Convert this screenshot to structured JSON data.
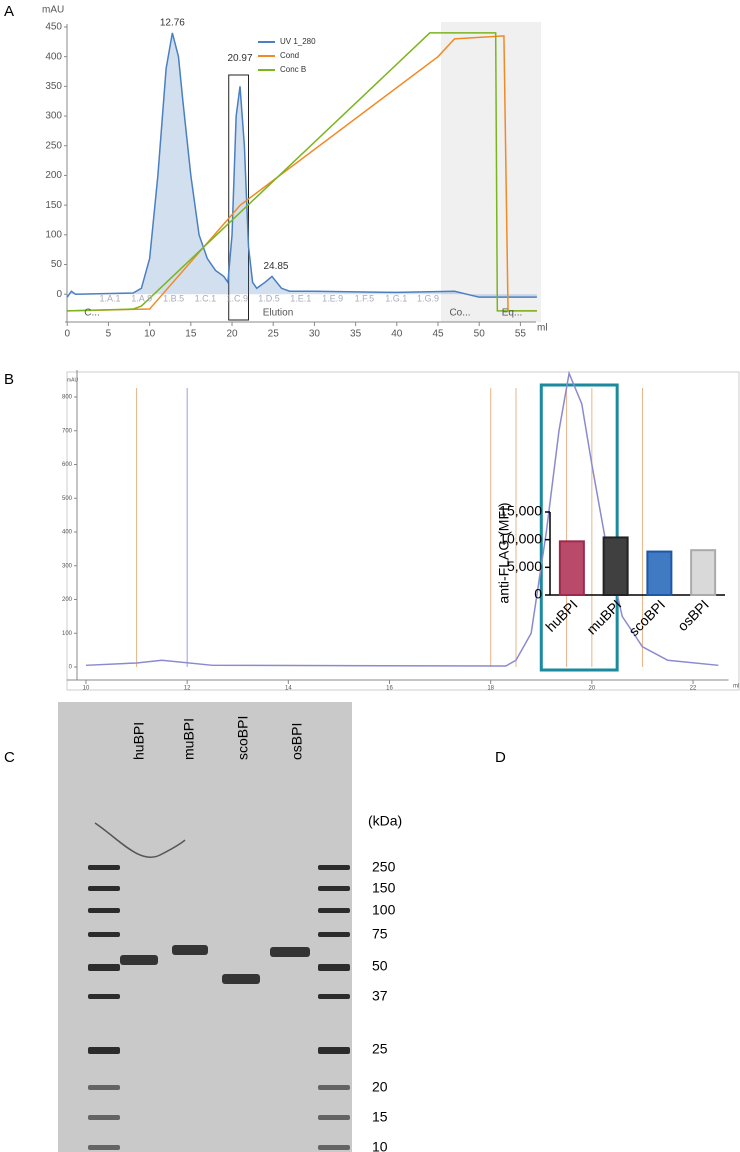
{
  "chart_data": [
    {
      "type": "line",
      "label": "A",
      "ylabel": "mAU",
      "xlabel": "ml",
      "xlim": [
        -1,
        57.5
      ],
      "xticks": [
        0,
        5,
        10,
        15,
        20,
        25,
        30,
        35,
        40,
        45,
        50,
        55
      ],
      "ylim": [
        -35,
        455
      ],
      "yticks": [
        0,
        50,
        100,
        150,
        200,
        250,
        300,
        350,
        400,
        450
      ],
      "series": [
        {
          "name": "UV 1_280",
          "color": "#4a7fc1",
          "area": true,
          "x": [
            0,
            0.5,
            1,
            8,
            9,
            10,
            11,
            12,
            12.76,
            13.5,
            14,
            15,
            16,
            17,
            18,
            19,
            19.5,
            20,
            20.5,
            20.97,
            21.5,
            22,
            22.5,
            23,
            24,
            24.85,
            26,
            27,
            30,
            40,
            47,
            50,
            57
          ],
          "values": [
            -5,
            5,
            0,
            2,
            10,
            60,
            200,
            380,
            440,
            400,
            330,
            200,
            100,
            60,
            40,
            30,
            20,
            100,
            300,
            350,
            250,
            80,
            20,
            10,
            20,
            30,
            10,
            5,
            5,
            3,
            5,
            -5,
            -5
          ]
        },
        {
          "name": "Cond",
          "color": "#f08a24",
          "x": [
            0,
            10,
            21,
            45,
            47,
            53,
            53.5,
            57
          ],
          "values": [
            -28,
            -25,
            150,
            400,
            430,
            435,
            -28,
            -28
          ]
        },
        {
          "name": "Conc B",
          "color": "#7ab51d",
          "x": [
            0,
            8,
            9,
            44,
            52,
            52.2,
            57
          ],
          "values": [
            -28,
            -25,
            -20,
            440,
            440,
            -28,
            -28
          ]
        }
      ],
      "annotations": [
        "12.76",
        "20.97",
        "24.85"
      ],
      "annotation_x": [
        12.76,
        20.97,
        24.85
      ],
      "annotation_y": [
        440,
        380,
        30
      ],
      "fractions": [
        "1.A.1",
        "1.A.9",
        "1.B.5",
        "1.C.1",
        "1.C.9",
        "1.D.5",
        "1.E.1",
        "1.E.9",
        "1.F.5",
        "1.G.1",
        "1.G.9"
      ],
      "phases": [
        "C...",
        "Elution",
        "Co...",
        "Eq..."
      ]
    },
    {
      "type": "line",
      "label": "B",
      "ylabel": "mAU",
      "xlabel": "ml",
      "xlim": [
        9.5,
        22.8
      ],
      "xticks": [
        10,
        12,
        14,
        16,
        18,
        20,
        22
      ],
      "ylim": [
        -20,
        880
      ],
      "yticks": [
        0,
        100,
        200,
        300,
        400,
        500,
        600,
        700,
        800
      ],
      "series": [
        {
          "name": null,
          "color": "#8a8ad0",
          "x": [
            10,
            11,
            11.5,
            12.5,
            18.3,
            18.5,
            18.8,
            19.1,
            19.35,
            19.55,
            19.8,
            20.0,
            20.3,
            20.6,
            21,
            21.5,
            22.5
          ],
          "values": [
            5,
            12,
            20,
            5,
            3,
            20,
            100,
            400,
            700,
            870,
            780,
            600,
            350,
            150,
            60,
            20,
            5
          ]
        }
      ]
    },
    {
      "type": "bar",
      "label": "D",
      "ylabel": "anti-FLAG (MFI)",
      "categories": [
        "huBPI",
        "muBPI",
        "scoBPI",
        "osBPI"
      ],
      "values": [
        9700,
        10400,
        7850,
        8100
      ],
      "colors": [
        "#b94a6a",
        "#404040",
        "#3f7ac2",
        "#d9d9d9"
      ],
      "edges": [
        "#9c2a4c",
        "#222222",
        "#1e56a8",
        "#aaaaaa"
      ],
      "ylim": [
        0,
        15000
      ],
      "yticks": [
        0,
        {
          "value": 5000,
          "label": "5,000"
        },
        {
          "value": 10000,
          "label": "10,000"
        },
        {
          "value": 15000,
          "label": "15,000"
        }
      ]
    }
  ],
  "gel": {
    "label": "C",
    "lanes": [
      "huBPI",
      "muBPI",
      "scoBPI",
      "osBPI"
    ],
    "unit": "(kDa)",
    "markers": [
      "250",
      "150",
      "100",
      "75",
      "50",
      "37",
      "25",
      "20",
      "15",
      "10"
    ]
  }
}
